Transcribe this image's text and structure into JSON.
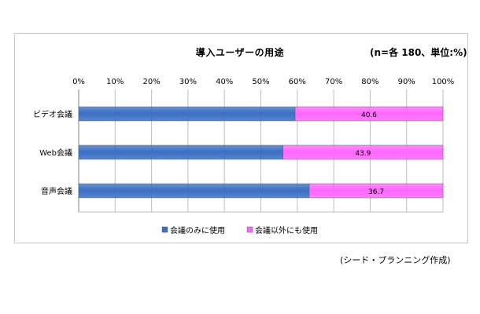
{
  "chart_data": {
    "type": "bar",
    "orientation": "horizontal",
    "stacked": true,
    "title": "導入ユーザーの用途",
    "subtitle": "(n=各 180、単位:%)",
    "categories": [
      "ビデオ会議",
      "Web会議",
      "音声会議"
    ],
    "series": [
      {
        "name": "会議のみに使用",
        "values": [
          59.4,
          56.1,
          63.3
        ],
        "color": "#3a6fc4"
      },
      {
        "name": "会議以外にも使用",
        "values": [
          40.6,
          43.9,
          36.7
        ],
        "color": "#ff66ff"
      }
    ],
    "data_labels": [
      "40.6",
      "43.9",
      "36.7"
    ],
    "xlim": [
      0,
      100
    ],
    "x_ticks": [
      "0%",
      "10%",
      "20%",
      "30%",
      "40%",
      "50%",
      "60%",
      "70%",
      "80%",
      "90%",
      "100%"
    ],
    "grid": true,
    "legend_position": "bottom"
  },
  "credit": "(シード・プランニング作成)"
}
